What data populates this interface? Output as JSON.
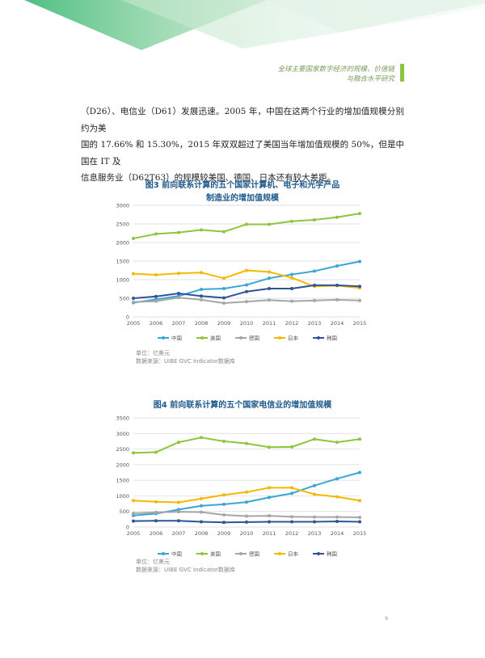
{
  "header": {
    "line1": "全球主要国家数字经济的规模、价值链",
    "line2": "与融合水平研究"
  },
  "body_lines": [
    "（D26）、电信业（D61）发展迅速。2005 年，中国在这两个行业的增加值规模分别约为美",
    "国的 17.66% 和 15.30%，2015 年双双超过了美国当年增加值规模的 50%，但是中国在 IT 及",
    "信息服务业（D62T63）的规模较美国、德国、日本还有较大差距。"
  ],
  "colors": {
    "中国": "#3aa6d8",
    "美国": "#8cc63f",
    "德国": "#a6a6a6",
    "日本": "#f5b800",
    "韩国": "#2e5597"
  },
  "chart_data": [
    {
      "type": "line",
      "title_lines": [
        "图3  前向联系计算的五个国家计算机、电子和光学产品",
        "制造业的增加值规模"
      ],
      "x": [
        "2005",
        "2006",
        "2007",
        "2008",
        "2009",
        "2010",
        "2011",
        "2012",
        "2013",
        "2014",
        "2015"
      ],
      "ylim": [
        0,
        3000
      ],
      "yticks": [
        0,
        500,
        1000,
        1500,
        2000,
        2500,
        3000
      ],
      "grid": true,
      "legend_position": "bottom",
      "series": [
        {
          "name": "中国",
          "values": [
            380,
            470,
            560,
            740,
            760,
            860,
            1040,
            1140,
            1230,
            1370,
            1490
          ]
        },
        {
          "name": "美国",
          "values": [
            2110,
            2230,
            2270,
            2340,
            2290,
            2490,
            2490,
            2570,
            2610,
            2680,
            2780
          ]
        },
        {
          "name": "德国",
          "values": [
            400,
            420,
            520,
            460,
            370,
            410,
            450,
            420,
            440,
            460,
            440
          ]
        },
        {
          "name": "日本",
          "values": [
            1160,
            1130,
            1170,
            1190,
            1040,
            1250,
            1210,
            1050,
            820,
            840,
            780
          ]
        },
        {
          "name": "韩国",
          "values": [
            500,
            550,
            630,
            560,
            510,
            680,
            760,
            760,
            850,
            850,
            820
          ]
        }
      ],
      "note_lines": [
        "单位：亿美元",
        "数据来源：UIBE GVC Indicator数据库"
      ]
    },
    {
      "type": "line",
      "title_lines": [
        "图4  前向联系计算的五个国家电信业的增加值规模"
      ],
      "x": [
        "2005",
        "2006",
        "2007",
        "2008",
        "2009",
        "2010",
        "2011",
        "2012",
        "2013",
        "2014",
        "2015"
      ],
      "ylim": [
        0,
        3500
      ],
      "yticks": [
        0,
        500,
        1000,
        1500,
        2000,
        2500,
        3000,
        3500
      ],
      "grid": true,
      "legend_position": "bottom",
      "series": [
        {
          "name": "中国",
          "values": [
            370,
            430,
            560,
            680,
            730,
            800,
            950,
            1080,
            1330,
            1550,
            1750
          ]
        },
        {
          "name": "美国",
          "values": [
            2380,
            2400,
            2720,
            2870,
            2750,
            2680,
            2560,
            2570,
            2820,
            2720,
            2820
          ]
        },
        {
          "name": "德国",
          "values": [
            440,
            470,
            490,
            480,
            390,
            350,
            360,
            330,
            320,
            320,
            310
          ]
        },
        {
          "name": "日本",
          "values": [
            850,
            810,
            790,
            910,
            1030,
            1120,
            1260,
            1260,
            1050,
            970,
            850
          ]
        },
        {
          "name": "韩国",
          "values": [
            190,
            200,
            200,
            170,
            150,
            160,
            170,
            170,
            170,
            180,
            170
          ]
        }
      ],
      "note_lines": [
        "单位：亿美元",
        "数据来源：UIBE GVC Indicator数据库"
      ]
    }
  ],
  "page_number": "9"
}
